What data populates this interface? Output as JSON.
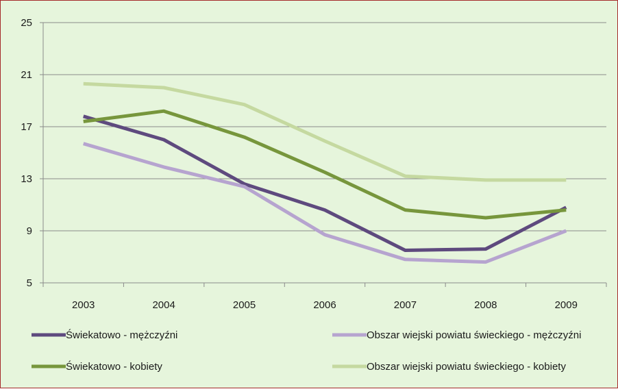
{
  "chart_data": {
    "type": "line",
    "title": "",
    "xlabel": "",
    "ylabel": "",
    "categories": [
      "2003",
      "2004",
      "2005",
      "2006",
      "2007",
      "2008",
      "2009"
    ],
    "ylim": [
      5,
      25
    ],
    "yticks": [
      5,
      9,
      13,
      17,
      21,
      25
    ],
    "grid": "horizontal",
    "legend_position": "bottom",
    "background_color": "#e6f5dc",
    "series": [
      {
        "name": "Świekatowo - mężczyźni",
        "color": "#5e4a7e",
        "values": [
          17.8,
          16.0,
          12.6,
          10.6,
          7.5,
          7.6,
          10.8
        ]
      },
      {
        "name": "Obszar wiejski powiatu świeckiego - mężczyźni",
        "color": "#b6a4cf",
        "values": [
          15.7,
          13.9,
          12.4,
          8.7,
          6.8,
          6.6,
          9.0
        ]
      },
      {
        "name": "Świekatowo - kobiety",
        "color": "#77963c",
        "values": [
          17.4,
          18.2,
          16.2,
          13.5,
          10.6,
          10.0,
          10.6
        ]
      },
      {
        "name": "Obszar wiejski powiatu świeckiego - kobiety",
        "color": "#c5d9a0",
        "values": [
          20.3,
          20.0,
          18.7,
          15.9,
          13.2,
          12.9,
          12.9
        ]
      }
    ]
  }
}
